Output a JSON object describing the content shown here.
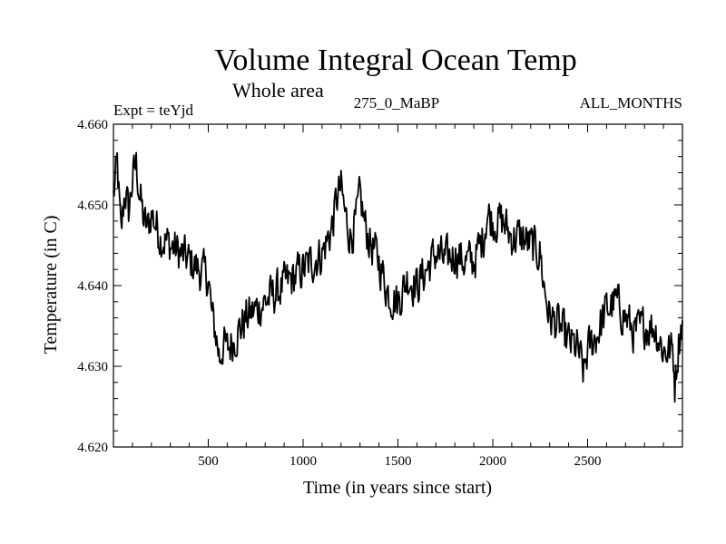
{
  "chart_data": {
    "type": "line",
    "title": "Volume Integral Ocean Temp",
    "subtitle": "Whole area",
    "left_label": "Expt = teYjd",
    "center_label": "275_0_MaBP",
    "right_label": "ALL_MONTHS",
    "xlabel": "Time (in years since start)",
    "ylabel": "Temperature (in C)",
    "xlim": [
      0,
      3000
    ],
    "ylim": [
      4.62,
      4.66
    ],
    "xticks": [
      500,
      1000,
      1500,
      2000,
      2500
    ],
    "xtick_labels": [
      "500",
      "1000",
      "1500",
      "2000",
      "2500"
    ],
    "yticks": [
      4.62,
      4.63,
      4.64,
      4.65,
      4.66
    ],
    "ytick_labels": [
      "4.620",
      "4.630",
      "4.640",
      "4.650",
      "4.660"
    ],
    "grid": false,
    "line_color": "#000000",
    "series": [
      {
        "name": "Volume Integral Ocean Temp",
        "x": [
          0,
          20,
          40,
          60,
          80,
          100,
          120,
          140,
          160,
          180,
          200,
          250,
          300,
          350,
          400,
          450,
          500,
          520,
          540,
          560,
          580,
          600,
          650,
          700,
          750,
          800,
          850,
          900,
          950,
          1000,
          1050,
          1100,
          1150,
          1180,
          1200,
          1220,
          1250,
          1280,
          1300,
          1330,
          1360,
          1400,
          1450,
          1500,
          1550,
          1600,
          1650,
          1700,
          1750,
          1800,
          1850,
          1900,
          1950,
          1970,
          2000,
          2050,
          2100,
          2150,
          2200,
          2250,
          2270,
          2300,
          2350,
          2400,
          2450,
          2480,
          2500,
          2550,
          2600,
          2650,
          2700,
          2750,
          2800,
          2850,
          2900,
          2950,
          2960,
          2980,
          3000
        ],
        "y": [
          4.651,
          4.655,
          4.646,
          4.652,
          4.649,
          4.653,
          4.655,
          4.651,
          4.648,
          4.647,
          4.649,
          4.646,
          4.645,
          4.644,
          4.643,
          4.642,
          4.641,
          4.636,
          4.634,
          4.631,
          4.633,
          4.632,
          4.634,
          4.636,
          4.637,
          4.638,
          4.639,
          4.64,
          4.641,
          4.642,
          4.643,
          4.644,
          4.647,
          4.651,
          4.652,
          4.649,
          4.646,
          4.648,
          4.651,
          4.647,
          4.645,
          4.643,
          4.639,
          4.638,
          4.641,
          4.64,
          4.642,
          4.644,
          4.643,
          4.644,
          4.643,
          4.643,
          4.646,
          4.649,
          4.648,
          4.648,
          4.646,
          4.646,
          4.645,
          4.644,
          4.64,
          4.636,
          4.635,
          4.633,
          4.632,
          4.629,
          4.632,
          4.634,
          4.637,
          4.638,
          4.636,
          4.634,
          4.635,
          4.635,
          4.632,
          4.632,
          4.628,
          4.633,
          4.636
        ]
      }
    ]
  }
}
